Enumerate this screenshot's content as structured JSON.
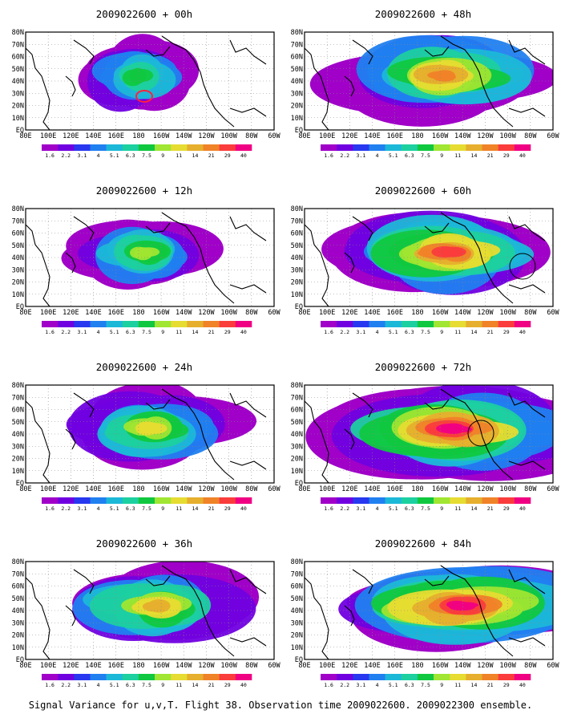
{
  "figure": {
    "caption": "Signal Variance for u,v,T. Flight 38. Observation time 2009022600. 2009022300 ensemble."
  },
  "chart_data": {
    "type": "heatmap",
    "panels": [
      {
        "title": "2009022600 + 00h",
        "lead_hours": 0
      },
      {
        "title": "2009022600 + 12h",
        "lead_hours": 12
      },
      {
        "title": "2009022600 + 24h",
        "lead_hours": 24
      },
      {
        "title": "2009022600 + 36h",
        "lead_hours": 36
      },
      {
        "title": "2009022600 + 48h",
        "lead_hours": 48
      },
      {
        "title": "2009022600 + 60h",
        "lead_hours": 60
      },
      {
        "title": "2009022600 + 72h",
        "lead_hours": 72
      },
      {
        "title": "2009022600 + 84h",
        "lead_hours": 84
      }
    ],
    "x_ticks": [
      "80E",
      "100E",
      "120E",
      "140E",
      "160E",
      "180",
      "160W",
      "140W",
      "120W",
      "100W",
      "80W",
      "60W"
    ],
    "y_ticks": [
      "EQ",
      "10N",
      "20N",
      "30N",
      "40N",
      "50N",
      "60N",
      "70N",
      "80N"
    ],
    "x_range_deg_east": [
      80,
      300
    ],
    "y_range_deg_north": [
      0,
      80
    ],
    "grid": true,
    "colorbar": {
      "labels": [
        "1.6",
        "2.2",
        "3.1",
        "4",
        "5.1",
        "6.3",
        "7.5",
        "9",
        "11",
        "14",
        "21",
        "29",
        "40"
      ],
      "colors": [
        "#a000c8",
        "#7000e0",
        "#2838f0",
        "#2080f0",
        "#1cb8d8",
        "#1cd0a0",
        "#10c840",
        "#a0e632",
        "#e6dc32",
        "#e6af2d",
        "#f08228",
        "#fa3c3c",
        "#f00082"
      ]
    }
  }
}
